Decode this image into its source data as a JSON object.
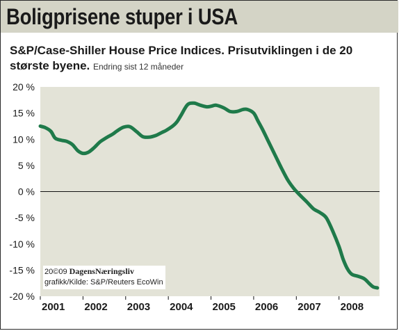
{
  "headline": "Boligprisene stuper i USA",
  "subtitle": {
    "main": "S&P/Case-Shiller House Price Indices. Prisutviklingen i de 20 største byene.",
    "note": "Endring sist 12 måneder"
  },
  "credit": {
    "copyright": "20©09",
    "brand": "DagensNæringsliv",
    "source": "grafikk/Kilde: S&P/Reuters EcoWin"
  },
  "colors": {
    "header_bg": "#d4d4c6",
    "plot_bg": "#e3e3d7",
    "line": "#1f7a4a",
    "text": "#1a1a1a"
  },
  "chart_data": {
    "type": "line",
    "title": "",
    "xlabel": "",
    "ylabel": "",
    "x_tick_labels": [
      "2001",
      "2002",
      "2003",
      "2004",
      "2005",
      "2006",
      "2007",
      "2008"
    ],
    "y_tick_labels": [
      "20 %",
      "15 %",
      "10 %",
      "5 %",
      "0 %",
      "-5 %",
      "-10 %",
      "-15 %",
      "-20 %"
    ],
    "ylim": [
      -20,
      20
    ],
    "xlim": [
      2001.0,
      2008.95
    ],
    "grid": false,
    "zero_line": true,
    "series": [
      {
        "x": [
          2001.0,
          2001.12,
          2001.25,
          2001.35,
          2001.5,
          2001.62,
          2001.75,
          2001.88,
          2002.0,
          2002.12,
          2002.25,
          2002.4,
          2002.55,
          2002.7,
          2002.8,
          2002.95,
          2003.1,
          2003.25,
          2003.4,
          2003.55,
          2003.7,
          2003.85,
          2003.95,
          2004.1,
          2004.2,
          2004.3,
          2004.45,
          2004.6,
          2004.75,
          2004.9,
          2005.0,
          2005.12,
          2005.3,
          2005.45,
          2005.6,
          2005.75,
          2005.85,
          2006.0,
          2006.1,
          2006.2,
          2006.35,
          2006.5,
          2006.65,
          2006.8,
          2006.95,
          2007.1,
          2007.25,
          2007.4,
          2007.55,
          2007.7,
          2007.85,
          2008.0,
          2008.1,
          2008.2,
          2008.3,
          2008.45,
          2008.6,
          2008.7,
          2008.8,
          2008.9
        ],
        "y": [
          12.5,
          12.2,
          11.5,
          10.2,
          9.8,
          9.6,
          9.0,
          7.8,
          7.3,
          7.5,
          8.3,
          9.5,
          10.3,
          11.0,
          11.6,
          12.3,
          12.4,
          11.5,
          10.5,
          10.4,
          10.7,
          11.3,
          11.7,
          12.5,
          13.3,
          14.6,
          16.6,
          16.9,
          16.5,
          16.2,
          16.3,
          16.5,
          16.0,
          15.3,
          15.3,
          15.7,
          15.7,
          15.0,
          13.5,
          12.0,
          9.5,
          7.0,
          4.5,
          2.2,
          0.5,
          -0.8,
          -2.0,
          -3.3,
          -4.0,
          -5.0,
          -7.5,
          -10.5,
          -13.0,
          -14.8,
          -15.8,
          -16.2,
          -16.7,
          -17.5,
          -18.2,
          -18.4
        ]
      }
    ]
  }
}
